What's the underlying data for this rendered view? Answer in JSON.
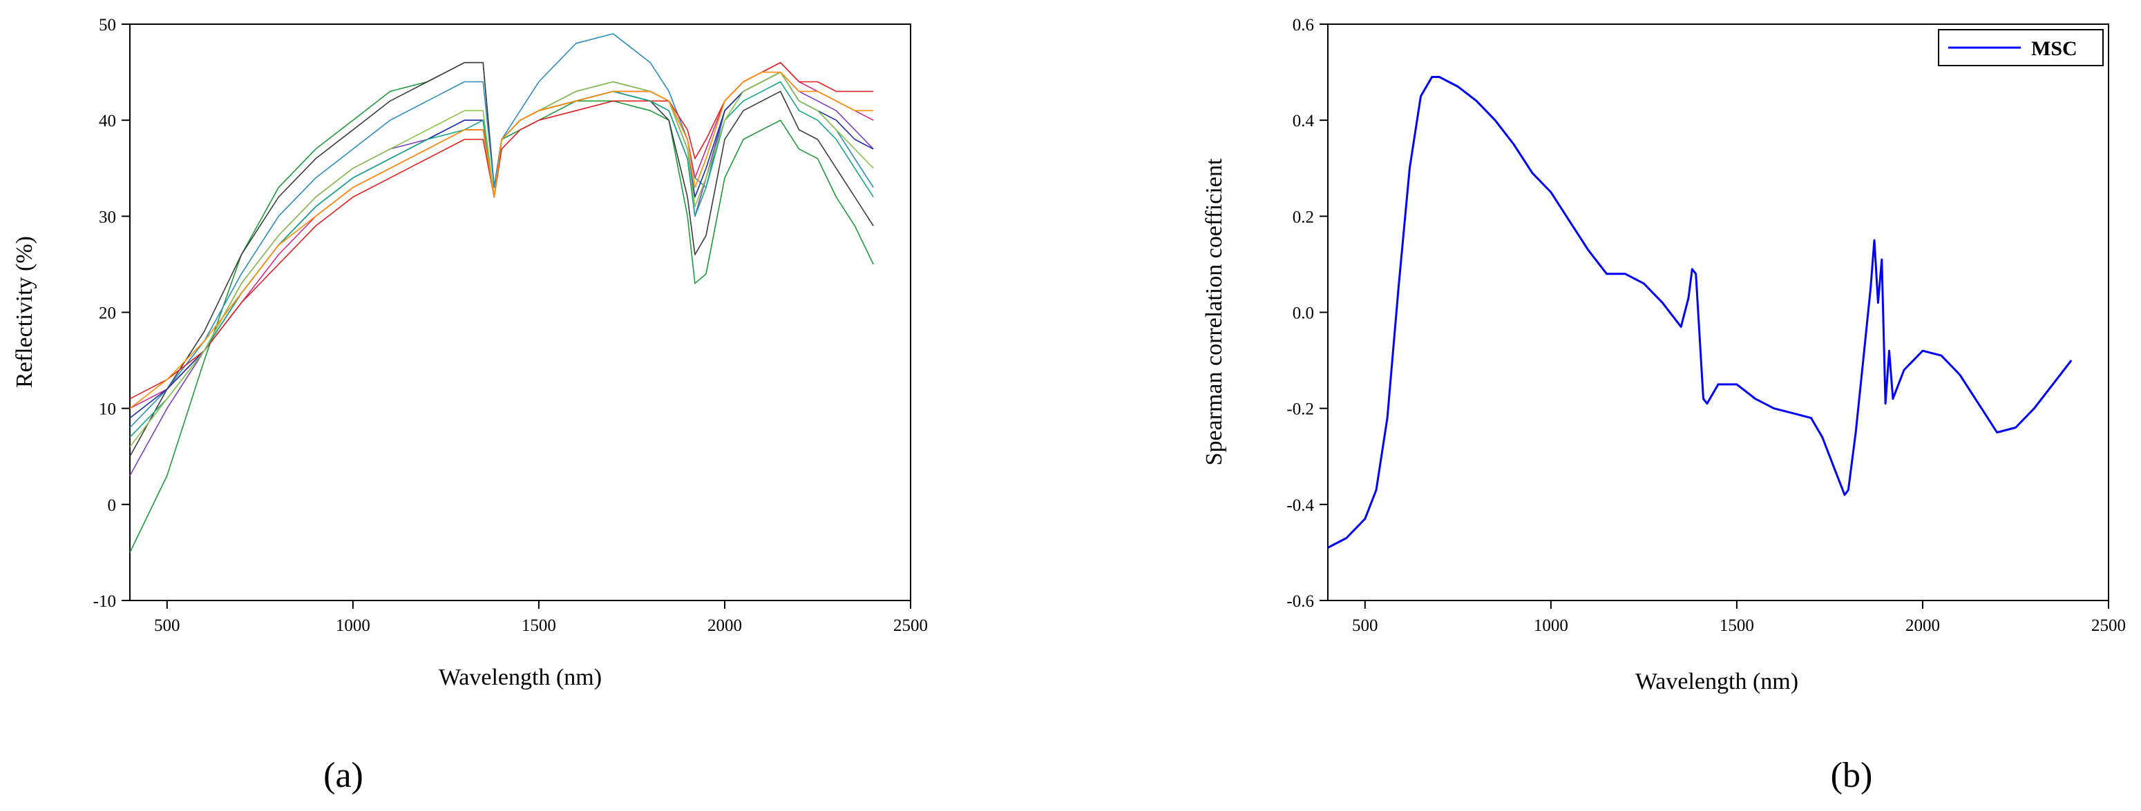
{
  "chart_data": [
    {
      "panel": "(a)",
      "type": "line",
      "xlabel": "Wavelength (nm)",
      "ylabel": "Reflectivity (%)",
      "xlim": [
        400,
        2500
      ],
      "ylim": [
        -10,
        50
      ],
      "xticks": [
        500,
        1000,
        1500,
        2000,
        2500
      ],
      "yticks": [
        -10,
        0,
        10,
        20,
        30,
        40,
        50
      ],
      "grid": false,
      "legend": "none",
      "x": [
        400,
        500,
        600,
        700,
        800,
        900,
        1000,
        1100,
        1200,
        1300,
        1350,
        1380,
        1400,
        1450,
        1500,
        1600,
        1700,
        1800,
        1850,
        1900,
        1920,
        1950,
        2000,
        2050,
        2100,
        2150,
        2200,
        2250,
        2300,
        2350,
        2400
      ],
      "series": [
        {
          "color": "#1f9a3a",
          "values": [
            -5,
            3,
            15,
            26,
            33,
            37,
            40,
            43,
            44,
            46,
            46,
            33,
            38,
            39,
            40,
            42,
            42,
            41,
            40,
            30,
            23,
            24,
            34,
            38,
            39,
            40,
            37,
            36,
            32,
            29,
            25
          ]
        },
        {
          "color": "#3b3b3b",
          "values": [
            5,
            12,
            18,
            26,
            32,
            36,
            39,
            42,
            44,
            46,
            46,
            33,
            38,
            40,
            41,
            42,
            43,
            42,
            40,
            32,
            26,
            28,
            38,
            41,
            42,
            43,
            39,
            38,
            35,
            32,
            29
          ]
        },
        {
          "color": "#2e8bc0",
          "values": [
            8,
            12,
            17,
            24,
            30,
            34,
            37,
            40,
            42,
            44,
            44,
            33,
            38,
            41,
            44,
            48,
            49,
            46,
            43,
            38,
            34,
            33,
            41,
            43,
            44,
            45,
            42,
            41,
            39,
            36,
            33
          ]
        },
        {
          "color": "#7a3fbf",
          "values": [
            3,
            10,
            16,
            23,
            28,
            32,
            35,
            37,
            38,
            40,
            40,
            32,
            38,
            40,
            41,
            42,
            43,
            42,
            41,
            36,
            30,
            34,
            41,
            43,
            44,
            45,
            43,
            42,
            41,
            39,
            37
          ]
        },
        {
          "color": "#d02a8c",
          "values": [
            10,
            12,
            16,
            21,
            26,
            30,
            33,
            35,
            37,
            39,
            39,
            32,
            38,
            40,
            41,
            42,
            43,
            43,
            42,
            38,
            34,
            37,
            42,
            44,
            45,
            46,
            44,
            43,
            42,
            41,
            40
          ]
        },
        {
          "color": "#e02020",
          "values": [
            11,
            13,
            16,
            21,
            25,
            29,
            32,
            34,
            36,
            38,
            38,
            32,
            37,
            39,
            40,
            41,
            42,
            42,
            42,
            39,
            36,
            38,
            42,
            44,
            45,
            46,
            44,
            44,
            43,
            43,
            43
          ]
        },
        {
          "color": "#1a2fa0",
          "values": [
            9,
            12,
            16,
            22,
            27,
            31,
            34,
            36,
            38,
            40,
            40,
            32,
            38,
            40,
            41,
            43,
            44,
            43,
            42,
            37,
            32,
            35,
            41,
            43,
            44,
            45,
            42,
            41,
            40,
            38,
            37
          ]
        },
        {
          "color": "#17a589",
          "values": [
            7,
            11,
            16,
            22,
            27,
            31,
            34,
            36,
            38,
            39,
            40,
            32,
            38,
            40,
            41,
            42,
            43,
            42,
            41,
            36,
            30,
            33,
            40,
            42,
            43,
            44,
            41,
            40,
            38,
            35,
            32
          ]
        },
        {
          "color": "#8bc34a",
          "values": [
            6,
            11,
            16,
            23,
            28,
            32,
            35,
            37,
            39,
            41,
            41,
            32,
            38,
            40,
            41,
            43,
            44,
            43,
            42,
            37,
            31,
            34,
            40,
            43,
            44,
            45,
            42,
            41,
            39,
            37,
            35
          ]
        },
        {
          "color": "#ff8c00",
          "values": [
            10,
            13,
            17,
            22,
            27,
            30,
            33,
            35,
            37,
            39,
            39,
            32,
            38,
            40,
            41,
            42,
            43,
            43,
            42,
            38,
            33,
            36,
            42,
            44,
            45,
            45,
            43,
            43,
            42,
            41,
            41
          ]
        }
      ]
    },
    {
      "panel": "(b)",
      "type": "line",
      "xlabel": "Wavelength (nm)",
      "ylabel": "Spearman correlation coefficient",
      "xlim": [
        400,
        2500
      ],
      "ylim": [
        -0.6,
        0.6
      ],
      "xticks": [
        500,
        1000,
        1500,
        2000,
        2500
      ],
      "yticks": [
        -0.6,
        -0.4,
        -0.2,
        0.0,
        0.2,
        0.4,
        0.6
      ],
      "ytick_labels": [
        "-0.6",
        "-0.4",
        "-0.2",
        "0.0",
        "0.2",
        "0.4",
        "0.6"
      ],
      "grid": false,
      "legend": "top-right",
      "series": [
        {
          "name": "MSC",
          "color": "#0000ff",
          "x": [
            400,
            450,
            500,
            530,
            560,
            590,
            620,
            650,
            680,
            700,
            750,
            800,
            850,
            900,
            950,
            1000,
            1050,
            1100,
            1150,
            1200,
            1250,
            1300,
            1350,
            1370,
            1380,
            1390,
            1400,
            1410,
            1420,
            1450,
            1500,
            1550,
            1600,
            1650,
            1700,
            1730,
            1760,
            1790,
            1800,
            1820,
            1840,
            1860,
            1870,
            1880,
            1890,
            1900,
            1910,
            1920,
            1950,
            2000,
            2050,
            2100,
            2150,
            2200,
            2250,
            2300,
            2350,
            2400
          ],
          "y": [
            -0.49,
            -0.47,
            -0.43,
            -0.37,
            -0.22,
            0.05,
            0.3,
            0.45,
            0.49,
            0.49,
            0.47,
            0.44,
            0.4,
            0.35,
            0.29,
            0.25,
            0.19,
            0.13,
            0.08,
            0.08,
            0.06,
            0.02,
            -0.03,
            0.03,
            0.09,
            0.08,
            -0.05,
            -0.18,
            -0.19,
            -0.15,
            -0.15,
            -0.18,
            -0.2,
            -0.21,
            -0.22,
            -0.26,
            -0.32,
            -0.38,
            -0.37,
            -0.25,
            -0.1,
            0.05,
            0.15,
            0.02,
            0.11,
            -0.19,
            -0.08,
            -0.18,
            -0.12,
            -0.08,
            -0.09,
            -0.13,
            -0.19,
            -0.25,
            -0.24,
            -0.2,
            -0.15,
            -0.1
          ]
        }
      ]
    }
  ]
}
